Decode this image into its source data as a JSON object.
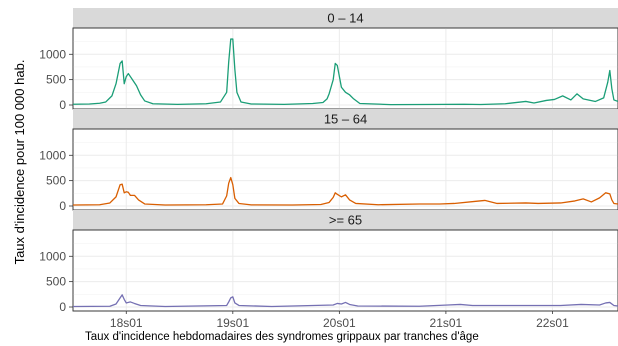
{
  "chart_data": {
    "type": "line",
    "facet_layout": "rows",
    "ylabel": "Taux d'incidence pour 100 000 hab.",
    "caption": "Taux d'incidence hebdomadaires des syndromes grippaux par tranches d'âge",
    "x_ticks": [
      "18s01",
      "19s01",
      "20s01",
      "21s01",
      "22s01"
    ],
    "xlim_weeks": [
      "17s27",
      "22s33"
    ],
    "ylim": [
      0,
      1400
    ],
    "y_ticks": [
      0,
      500,
      1000
    ],
    "grid": true,
    "panels": [
      {
        "title": "0 – 14",
        "color": "#1b9e77",
        "points": [
          [
            "17s27",
            15
          ],
          [
            "17s35",
            20
          ],
          [
            "17s40",
            35
          ],
          [
            "17s43",
            60
          ],
          [
            "17s46",
            180
          ],
          [
            "17s48",
            420
          ],
          [
            "17s50",
            820
          ],
          [
            "17s51",
            870
          ],
          [
            "17s52",
            420
          ],
          [
            "18s01",
            560
          ],
          [
            "18s02",
            620
          ],
          [
            "18s04",
            500
          ],
          [
            "18s06",
            380
          ],
          [
            "18s08",
            200
          ],
          [
            "18s10",
            80
          ],
          [
            "18s14",
            25
          ],
          [
            "18s26",
            12
          ],
          [
            "18s40",
            25
          ],
          [
            "18s47",
            60
          ],
          [
            "18s50",
            250
          ],
          [
            "18s51",
            850
          ],
          [
            "18s52",
            1300
          ],
          [
            "19s01",
            1300
          ],
          [
            "19s02",
            700
          ],
          [
            "19s03",
            250
          ],
          [
            "19s05",
            60
          ],
          [
            "19s10",
            20
          ],
          [
            "19s26",
            12
          ],
          [
            "19s40",
            30
          ],
          [
            "19s45",
            50
          ],
          [
            "19s47",
            120
          ],
          [
            "19s48",
            220
          ],
          [
            "19s50",
            500
          ],
          [
            "19s51",
            820
          ],
          [
            "19s52",
            780
          ],
          [
            "20s02",
            350
          ],
          [
            "20s04",
            250
          ],
          [
            "20s06",
            200
          ],
          [
            "20s08",
            120
          ],
          [
            "20s11",
            30
          ],
          [
            "20s26",
            8
          ],
          [
            "20s40",
            10
          ],
          [
            "20s52",
            12
          ],
          [
            "21s10",
            15
          ],
          [
            "21s18",
            10
          ],
          [
            "21s30",
            25
          ],
          [
            "21s40",
            70
          ],
          [
            "21s44",
            40
          ],
          [
            "21s50",
            90
          ],
          [
            "22s02",
            110
          ],
          [
            "22s06",
            180
          ],
          [
            "22s10",
            100
          ],
          [
            "22s13",
            220
          ],
          [
            "22s16",
            120
          ],
          [
            "22s22",
            70
          ],
          [
            "22s26",
            140
          ],
          [
            "22s28",
            450
          ],
          [
            "22s29",
            680
          ],
          [
            "22s30",
            320
          ],
          [
            "22s31",
            100
          ],
          [
            "22s33",
            70
          ]
        ]
      },
      {
        "title": "15 – 64",
        "color": "#d95f02",
        "points": [
          [
            "17s27",
            20
          ],
          [
            "17s40",
            25
          ],
          [
            "17s45",
            60
          ],
          [
            "17s48",
            180
          ],
          [
            "17s50",
            420
          ],
          [
            "17s51",
            430
          ],
          [
            "17s52",
            260
          ],
          [
            "18s01",
            280
          ],
          [
            "18s02",
            270
          ],
          [
            "18s03",
            210
          ],
          [
            "18s05",
            210
          ],
          [
            "18s07",
            120
          ],
          [
            "18s10",
            40
          ],
          [
            "18s20",
            20
          ],
          [
            "18s40",
            25
          ],
          [
            "18s48",
            40
          ],
          [
            "18s50",
            200
          ],
          [
            "18s51",
            450
          ],
          [
            "18s52",
            560
          ],
          [
            "19s01",
            420
          ],
          [
            "19s02",
            150
          ],
          [
            "19s04",
            50
          ],
          [
            "19s10",
            22
          ],
          [
            "19s30",
            20
          ],
          [
            "19s44",
            30
          ],
          [
            "19s48",
            70
          ],
          [
            "19s50",
            170
          ],
          [
            "19s51",
            260
          ],
          [
            "19s52",
            230
          ],
          [
            "20s02",
            180
          ],
          [
            "20s04",
            220
          ],
          [
            "20s06",
            120
          ],
          [
            "20s09",
            50
          ],
          [
            "20s20",
            25
          ],
          [
            "20s40",
            40
          ],
          [
            "20s50",
            40
          ],
          [
            "21s05",
            50
          ],
          [
            "21s15",
            90
          ],
          [
            "21s20",
            110
          ],
          [
            "21s26",
            50
          ],
          [
            "21s40",
            60
          ],
          [
            "21s46",
            50
          ],
          [
            "22s05",
            60
          ],
          [
            "22s12",
            100
          ],
          [
            "22s16",
            140
          ],
          [
            "22s20",
            80
          ],
          [
            "22s24",
            160
          ],
          [
            "22s27",
            260
          ],
          [
            "22s29",
            240
          ],
          [
            "22s30",
            120
          ],
          [
            "22s31",
            50
          ],
          [
            "22s33",
            40
          ]
        ]
      },
      {
        "title": ">= 65",
        "color": "#7570b3",
        "points": [
          [
            "17s27",
            10
          ],
          [
            "17s45",
            15
          ],
          [
            "17s48",
            60
          ],
          [
            "17s50",
            180
          ],
          [
            "17s51",
            240
          ],
          [
            "17s52",
            150
          ],
          [
            "18s01",
            80
          ],
          [
            "18s03",
            100
          ],
          [
            "18s05",
            70
          ],
          [
            "18s08",
            30
          ],
          [
            "18s20",
            10
          ],
          [
            "18s50",
            30
          ],
          [
            "18s51",
            100
          ],
          [
            "18s52",
            180
          ],
          [
            "19s01",
            200
          ],
          [
            "19s02",
            80
          ],
          [
            "19s04",
            30
          ],
          [
            "19s20",
            10
          ],
          [
            "19s50",
            40
          ],
          [
            "19s52",
            70
          ],
          [
            "20s02",
            60
          ],
          [
            "20s04",
            90
          ],
          [
            "20s06",
            50
          ],
          [
            "20s10",
            20
          ],
          [
            "20s40",
            15
          ],
          [
            "21s02",
            40
          ],
          [
            "21s08",
            50
          ],
          [
            "21s14",
            30
          ],
          [
            "21s40",
            30
          ],
          [
            "22s05",
            30
          ],
          [
            "22s15",
            50
          ],
          [
            "22s24",
            40
          ],
          [
            "22s27",
            80
          ],
          [
            "22s29",
            90
          ],
          [
            "22s31",
            30
          ],
          [
            "22s33",
            20
          ]
        ]
      }
    ]
  }
}
